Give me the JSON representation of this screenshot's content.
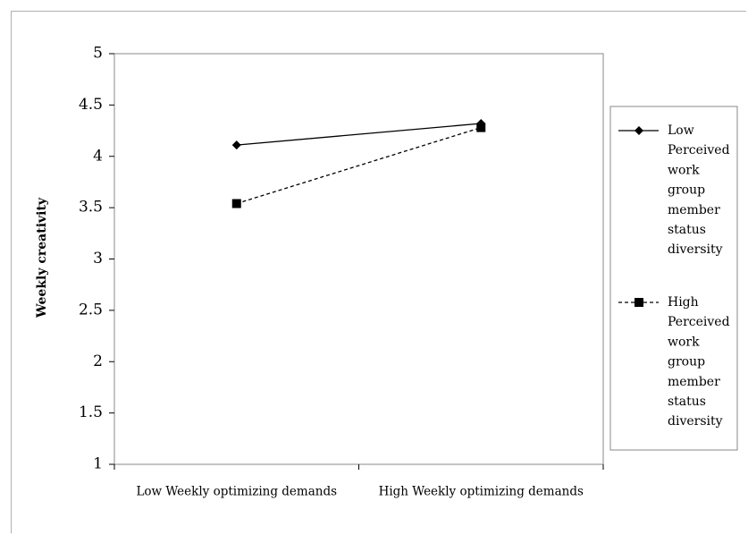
{
  "chart_data": {
    "type": "line",
    "title": "",
    "xlabel": "",
    "ylabel": "Weekly creativity",
    "categories": [
      "Low Weekly optimizing demands",
      "High Weekly optimizing demands"
    ],
    "ylim": [
      1,
      5
    ],
    "yticks": [
      "1",
      "1.5",
      "2",
      "2.5",
      "3",
      "3.5",
      "4",
      "4.5",
      "5"
    ],
    "grid": false,
    "legend_position": "right",
    "series": [
      {
        "name": "Low Perceived work group member status diversity",
        "name_lines": [
          "Low",
          "Perceived",
          "work",
          "group",
          "member",
          "status",
          "diversity"
        ],
        "values": [
          4.11,
          4.32
        ],
        "marker": "diamond",
        "line_style": "solid",
        "color": "#000000"
      },
      {
        "name": "High Perceived work group member status diversity",
        "name_lines": [
          "High",
          "Perceived",
          "work",
          "group",
          "member",
          "status",
          "diversity"
        ],
        "values": [
          3.54,
          4.28
        ],
        "marker": "square",
        "line_style": "dashed",
        "color": "#000000"
      }
    ]
  }
}
